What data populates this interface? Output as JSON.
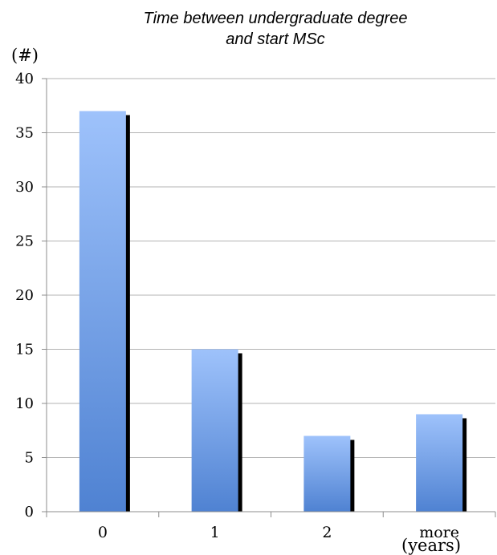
{
  "chart_data": {
    "type": "bar",
    "title": [
      "Time between undergraduate degree",
      "and start MSc"
    ],
    "ylabel": "(#)",
    "xlabel": "(years)",
    "categories": [
      "0",
      "1",
      "2",
      "more"
    ],
    "values": [
      37,
      15,
      7,
      9
    ],
    "ylim": [
      0,
      40
    ],
    "yticks": [
      0,
      5,
      10,
      15,
      20,
      25,
      30,
      35,
      40
    ],
    "grid": true,
    "legend": "none",
    "colors": {
      "bar_top": "#9ec2fb",
      "bar_bottom": "#4f82d2",
      "bar_shadow": "#000000",
      "grid": "#b3b3b3",
      "axis": "#8c8c8c"
    }
  }
}
